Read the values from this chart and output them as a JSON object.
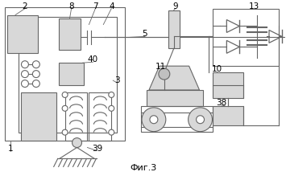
{
  "bg_color": "#ffffff",
  "dc": "#666666",
  "fig_caption": "Фиг.3",
  "light_gray": "#d8d8d8",
  "mid_gray": "#c0c0c0"
}
